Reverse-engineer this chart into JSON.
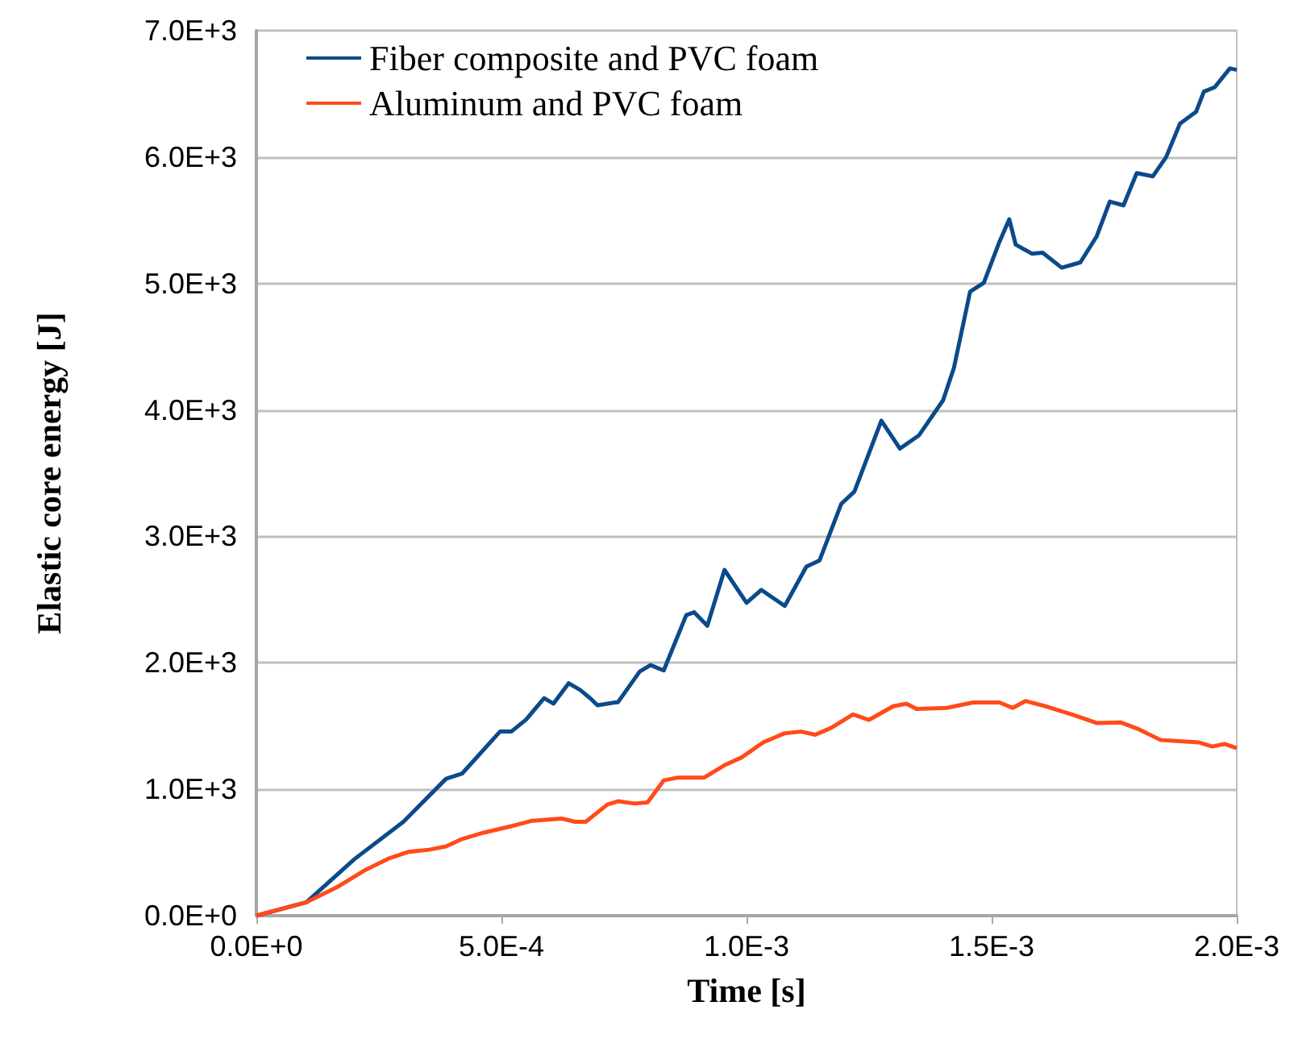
{
  "chart_data": {
    "type": "line",
    "xlabel": "Time [s]",
    "ylabel": "Elastic core energy [J]",
    "xlim": [
      0,
      0.002
    ],
    "ylim": [
      0,
      7000
    ],
    "xticks": [
      {
        "value": 0,
        "label": "0.0E+0"
      },
      {
        "value": 0.0005,
        "label": "5.0E-4"
      },
      {
        "value": 0.001,
        "label": "1.0E-3"
      },
      {
        "value": 0.0015,
        "label": "1.5E-3"
      },
      {
        "value": 0.002,
        "label": "2.0E-3"
      }
    ],
    "yticks": [
      {
        "value": 0,
        "label": "0.0E+0"
      },
      {
        "value": 1000,
        "label": "1.0E+3"
      },
      {
        "value": 2000,
        "label": "2.0E+3"
      },
      {
        "value": 3000,
        "label": "3.0E+3"
      },
      {
        "value": 4000,
        "label": "4.0E+3"
      },
      {
        "value": 5000,
        "label": "5.0E+3"
      },
      {
        "value": 6000,
        "label": "6.0E+3"
      },
      {
        "value": 7000,
        "label": "7.0E+3"
      }
    ],
    "grid": "y",
    "legend": "top left",
    "marker": "none",
    "line_style": "solid",
    "series": [
      {
        "name": "Fiber composite and PVC foam",
        "color": "#0b4a8b",
        "x": [
          0,
          0.000102,
          0.0002,
          0.0003,
          0.000387,
          0.00042,
          0.000497,
          0.00052,
          0.00055,
          0.000587,
          0.000606,
          0.000637,
          0.000661,
          0.000681,
          0.000696,
          0.000738,
          0.000782,
          0.000804,
          0.000831,
          0.000877,
          0.000893,
          0.00092,
          0.000955,
          0.001,
          0.00103,
          0.001078,
          0.001122,
          0.001149,
          0.001193,
          0.00122,
          0.001275,
          0.001313,
          0.001352,
          0.001401,
          0.001423,
          0.001456,
          0.001484,
          0.001516,
          0.001536,
          0.001549,
          0.001582,
          0.001604,
          0.001643,
          0.001681,
          0.001714,
          0.001741,
          0.001769,
          0.001796,
          0.001829,
          0.001856,
          0.001884,
          0.001917,
          0.001933,
          0.001955,
          0.001986,
          0.002
        ],
        "values": [
          0,
          106,
          447,
          743,
          1083,
          1125,
          1456,
          1456,
          1550,
          1720,
          1677,
          1838,
          1784,
          1720,
          1664,
          1690,
          1931,
          1982,
          1940,
          2377,
          2400,
          2293,
          2735,
          2475,
          2577,
          2450,
          2760,
          2810,
          3256,
          3354,
          3915,
          3694,
          3800,
          4077,
          4332,
          4935,
          5005,
          5330,
          5508,
          5308,
          5236,
          5244,
          5125,
          5167,
          5371,
          5648,
          5618,
          5873,
          5848,
          6000,
          6263,
          6357,
          6518,
          6552,
          6701,
          6690
        ]
      },
      {
        "name": "Aluminum and PVC foam",
        "color": "#ff4b1a",
        "x": [
          0,
          0.000102,
          0.000168,
          0.000222,
          0.000271,
          0.00031,
          0.000353,
          0.000387,
          0.00042,
          0.000464,
          0.00052,
          0.000563,
          0.000623,
          0.00065,
          0.000672,
          0.000716,
          0.000738,
          0.000771,
          0.000798,
          0.000831,
          0.000858,
          0.000913,
          0.000955,
          0.00099,
          0.001034,
          0.001078,
          0.001111,
          0.00114,
          0.001173,
          0.001217,
          0.00125,
          0.001299,
          0.001326,
          0.001347,
          0.001408,
          0.001462,
          0.001516,
          0.001543,
          0.001569,
          0.001615,
          0.00167,
          0.001714,
          0.001763,
          0.001801,
          0.001845,
          0.001884,
          0.001922,
          0.00195,
          0.001975,
          0.002
        ],
        "values": [
          0,
          106,
          233,
          361,
          454,
          505,
          522,
          548,
          607,
          657,
          708,
          751,
          768,
          743,
          743,
          879,
          905,
          887,
          896,
          1070,
          1091,
          1091,
          1190,
          1252,
          1371,
          1443,
          1456,
          1431,
          1486,
          1592,
          1549,
          1656,
          1677,
          1635,
          1643,
          1686,
          1686,
          1643,
          1698,
          1651,
          1584,
          1524,
          1529,
          1473,
          1389,
          1380,
          1371,
          1338,
          1358,
          1325
        ]
      }
    ]
  }
}
